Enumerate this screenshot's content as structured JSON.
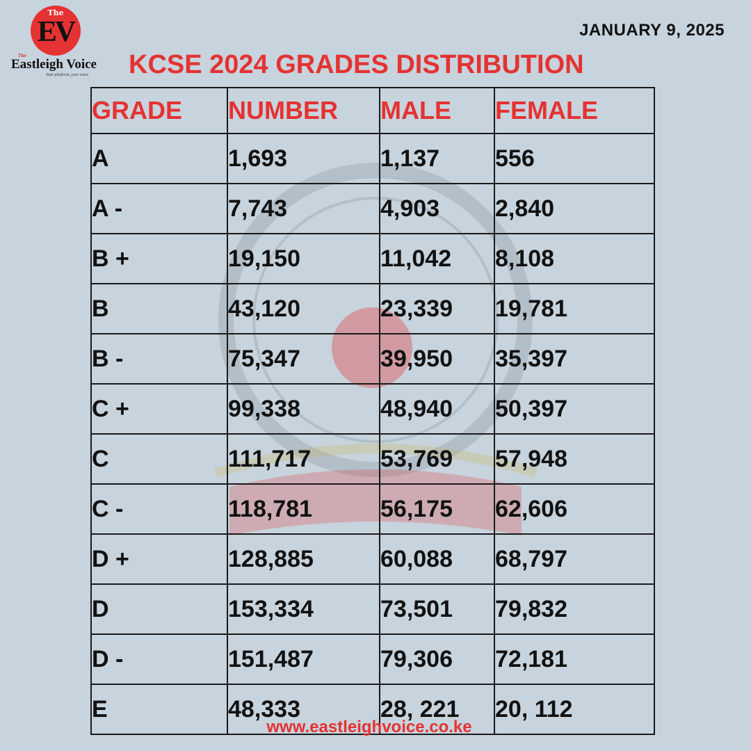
{
  "logo": {
    "the": "The",
    "initials": "EV",
    "the_small": "The",
    "brand": "Eastleigh Voice",
    "tagline": "Your platform, your voice",
    "icon": "eastleigh-voice-logo"
  },
  "date": "JANUARY 9, 2025",
  "title": "KCSE 2024 GRADES DISTRIBUTION",
  "table": {
    "headers": [
      "GRADE",
      "NUMBER",
      "MALE",
      "FEMALE"
    ],
    "rows": [
      {
        "grade": "A",
        "number": "1,693",
        "male": "1,137",
        "female": "556"
      },
      {
        "grade": "A -",
        "number": "7,743",
        "male": "4,903",
        "female": "2,840"
      },
      {
        "grade": "B +",
        "number": "19,150",
        "male": "11,042",
        "female": "8,108"
      },
      {
        "grade": "B",
        "number": "43,120",
        "male": "23,339",
        "female": "19,781"
      },
      {
        "grade": "B -",
        "number": "75,347",
        "male": "39,950",
        "female": "35,397"
      },
      {
        "grade": "C +",
        "number": "99,338",
        "male": "48,940",
        "female": "50,397"
      },
      {
        "grade": "C",
        "number": "111,717",
        "male": "53,769",
        "female": "57,948"
      },
      {
        "grade": "C -",
        "number": "118,781",
        "male": "56,175",
        "female": "62,606"
      },
      {
        "grade": "D +",
        "number": "128,885",
        "male": "60,088",
        "female": "68,797"
      },
      {
        "grade": "D",
        "number": "153,334",
        "male": "73,501",
        "female": "79,832"
      },
      {
        "grade": "D -",
        "number": "151,487",
        "male": "79,306",
        "female": "72,181"
      },
      {
        "grade": "E",
        "number": "48,333",
        "male": "28, 221",
        "female": "20, 112"
      }
    ]
  },
  "website": "www.eastleighvoice.co.ke",
  "colors": {
    "background": "#c7d3dd",
    "accent": "#e53232",
    "text": "#111111"
  }
}
